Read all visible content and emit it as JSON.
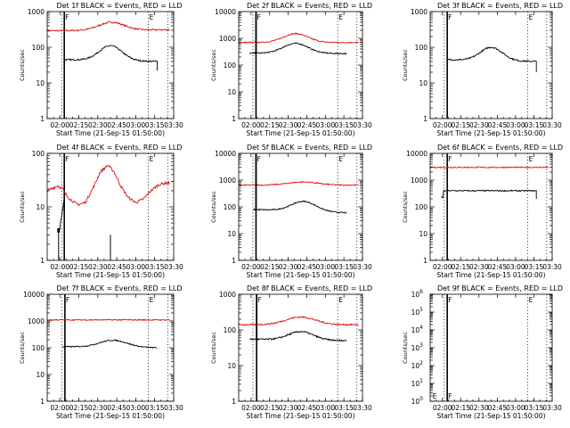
{
  "figure": {
    "x_ticks": [
      "02:00",
      "02:15",
      "02:30",
      "02:45",
      "03:00",
      "03:15",
      "03:30"
    ],
    "x_label": "Start Time (21-Sep-15 01:50:00)",
    "y_label": "Counts/sec",
    "colors": {
      "black_series": "#000000",
      "red_series": "#e01010"
    }
  },
  "chart_data": [
    {
      "type": "line",
      "title": "Det 1f BLACK = Events, RED = LLD",
      "xlabel": "Start Time (21-Sep-15 01:50:00)",
      "ylabel": "Counts/sec",
      "yscale": "log",
      "ylim": [
        1,
        1000
      ],
      "y_tick_labels": [
        "1",
        "10",
        "100",
        "1000"
      ],
      "xlim_minutes": [
        0,
        100
      ],
      "x_tick_labels": [
        "02:00",
        "02:15",
        "02:30",
        "02:45",
        "03:00",
        "03:15",
        "03:30"
      ],
      "markers": {
        "solid_line_at": 13.5,
        "dotted_lines_at": [
          11.5,
          80,
          95.5
        ],
        "F_label_at": 13.5,
        "E_label_at": 80
      },
      "series": [
        {
          "color": "red",
          "start": 0,
          "end": 97,
          "base": 290,
          "bump_center": 51,
          "bump_width": 10,
          "bump_peak": 500,
          "end_value": 310
        },
        {
          "color": "black",
          "start": 13.5,
          "end": 87,
          "base": 45,
          "bump_center": 50,
          "bump_width": 9,
          "bump_peak": 110,
          "end_value": 40,
          "drop_value": 22
        }
      ]
    },
    {
      "type": "line",
      "title": "Det 2f BLACK = Events, RED = LLD",
      "xlabel": "Start Time (21-Sep-15 01:50:00)",
      "ylabel": "Counts/sec",
      "yscale": "log",
      "ylim": [
        1,
        10000
      ],
      "y_tick_labels": [
        "1",
        "10",
        "100",
        "1000",
        "10000"
      ],
      "xlim_minutes": [
        0,
        100
      ],
      "x_tick_labels": [
        "02:00",
        "02:15",
        "02:30",
        "02:45",
        "03:00",
        "03:15",
        "03:30"
      ],
      "markers": {
        "solid_line_at": 14,
        "dotted_lines_at": [
          11.5,
          80,
          95.5
        ],
        "F_label_at": 14,
        "E_label_at": 80
      },
      "series": [
        {
          "color": "red",
          "start": 0,
          "end": 97,
          "base": 700,
          "bump_center": 46,
          "bump_width": 10,
          "bump_peak": 1500,
          "end_value": 700
        },
        {
          "color": "black",
          "start": 9,
          "end": 87,
          "base": 280,
          "bump_center": 46,
          "bump_width": 10,
          "bump_peak": 650,
          "end_value": 270,
          "spike_at": 14,
          "spike_value": 10000
        }
      ]
    },
    {
      "type": "line",
      "title": "Det 3f BLACK = Events, RED = LLD",
      "xlabel": "Start Time (21-Sep-15 01:50:00)",
      "ylabel": "Counts/sec",
      "yscale": "log",
      "ylim": [
        1,
        1000
      ],
      "y_tick_labels": [
        "1",
        "10",
        "100",
        "1000"
      ],
      "xlim_minutes": [
        0,
        100
      ],
      "x_tick_labels": [
        "02:00",
        "02:15",
        "02:30",
        "02:45",
        "03:00",
        "03:15",
        "03:30"
      ],
      "markers": {
        "solid_line_at": 14,
        "dotted_lines_at": [
          11.5,
          80,
          95.5
        ],
        "F_label_at": 14,
        "E_label_at": 80
      },
      "series": [
        {
          "color": "black",
          "start": 14,
          "end": 87,
          "base": 45,
          "bump_center": 50,
          "bump_width": 9,
          "bump_peak": 100,
          "end_value": 40,
          "drop_value": 20
        }
      ]
    },
    {
      "type": "line",
      "title": "Det 4f BLACK = Events, RED = LLD",
      "xlabel": "Start Time (21-Sep-15 01:50:00)",
      "ylabel": "Counts/sec",
      "yscale": "log",
      "ylim": [
        1,
        100
      ],
      "y_tick_labels": [
        "1",
        "10",
        "100"
      ],
      "xlim_minutes": [
        0,
        100
      ],
      "x_tick_labels": [
        "02:00",
        "02:15",
        "02:30",
        "02:45",
        "03:00",
        "03:15",
        "03:30"
      ],
      "markers": {
        "solid_line_at": 13.5,
        "dotted_lines_at": [
          11.5,
          80,
          95.5
        ],
        "F_label_at": 13.5,
        "E_label_at": 80
      },
      "series": [
        {
          "color": "red",
          "start": 0,
          "end": 97,
          "profile": [
            [
              0,
              20
            ],
            [
              4,
              22
            ],
            [
              8,
              25
            ],
            [
              12,
              22
            ],
            [
              14,
              18
            ],
            [
              18,
              14
            ],
            [
              24,
              11
            ],
            [
              30,
              12
            ],
            [
              36,
              22
            ],
            [
              42,
              45
            ],
            [
              48,
              60
            ],
            [
              53,
              45
            ],
            [
              58,
              25
            ],
            [
              64,
              15
            ],
            [
              70,
              12
            ],
            [
              76,
              14
            ],
            [
              82,
              20
            ],
            [
              88,
              26
            ],
            [
              94,
              28
            ],
            [
              97,
              28
            ]
          ]
        },
        {
          "color": "black",
          "start": 8,
          "end": 13.5,
          "profile": [
            [
              8,
              3.5
            ],
            [
              9,
              3.5
            ],
            [
              10,
              4
            ],
            [
              11,
              6
            ],
            [
              12,
              8
            ],
            [
              13,
              12
            ],
            [
              13.5,
              14
            ]
          ]
        }
      ],
      "spikes": [
        {
          "x": 50,
          "value": 3
        },
        {
          "x": 9,
          "value": 3.5
        }
      ]
    },
    {
      "type": "line",
      "title": "Det 5f BLACK = Events, RED = LLD",
      "xlabel": "Start Time (21-Sep-15 01:50:00)",
      "ylabel": "Counts/sec",
      "yscale": "log",
      "ylim": [
        1,
        10000
      ],
      "y_tick_labels": [
        "1",
        "10",
        "100",
        "1000",
        "10000"
      ],
      "xlim_minutes": [
        0,
        100
      ],
      "x_tick_labels": [
        "02:00",
        "02:15",
        "02:30",
        "02:45",
        "03:00",
        "03:15",
        "03:30"
      ],
      "markers": {
        "solid_line_at": 14,
        "dotted_lines_at": [
          11.5,
          80,
          95.5
        ],
        "F_label_at": 14,
        "E_label_at": 80
      },
      "series": [
        {
          "color": "red",
          "start": 0,
          "end": 97,
          "base": 650,
          "bump_center": 52,
          "bump_width": 12,
          "bump_peak": 850,
          "end_value": 650
        },
        {
          "color": "black",
          "start": 12,
          "end": 87,
          "base": 80,
          "bump_center": 52,
          "bump_width": 10,
          "bump_peak": 160,
          "end_value": 60,
          "spike_at": 14,
          "spike_value": 10000
        }
      ]
    },
    {
      "type": "line",
      "title": "Det 6f BLACK = Events, RED = LLD",
      "xlabel": "Start Time (21-Sep-15 01:50:00)",
      "ylabel": "Counts/sec",
      "yscale": "log",
      "ylim": [
        1,
        10000
      ],
      "y_tick_labels": [
        "1",
        "10",
        "100",
        "1000",
        "10000"
      ],
      "xlim_minutes": [
        0,
        100
      ],
      "x_tick_labels": [
        "02:00",
        "02:15",
        "02:30",
        "02:45",
        "03:00",
        "03:15",
        "03:30"
      ],
      "markers": {
        "solid_line_at": 14,
        "dotted_lines_at": [
          11.5,
          80,
          95.5
        ],
        "F_label_at": 14,
        "E_label_at": 80
      },
      "series": [
        {
          "color": "red",
          "start": 0,
          "end": 97,
          "base": 3000,
          "end_value": 3000
        },
        {
          "color": "black",
          "start": 9,
          "end": 87,
          "base": 400,
          "end_value": 400,
          "start_value": 230,
          "drop_value": 200
        }
      ]
    },
    {
      "type": "line",
      "title": "Det 7f BLACK = Events, RED = LLD",
      "xlabel": "Start Time (21-Sep-15 01:50:00)",
      "ylabel": "Counts/sec",
      "yscale": "log",
      "ylim": [
        1,
        10000
      ],
      "y_tick_labels": [
        "1",
        "10",
        "100",
        "1000",
        "10000"
      ],
      "xlim_minutes": [
        0,
        100
      ],
      "x_tick_labels": [
        "02:00",
        "02:15",
        "02:30",
        "02:45",
        "03:00",
        "03:15",
        "03:30"
      ],
      "markers": {
        "solid_line_at": 14,
        "dotted_lines_at": [
          11.5,
          80,
          95.5
        ],
        "F_label_at": 14,
        "E_label_at": 80
      },
      "series": [
        {
          "color": "red",
          "start": 0,
          "end": 97,
          "base": 1100,
          "end_value": 1100
        },
        {
          "color": "black",
          "start": 12,
          "end": 87,
          "base": 110,
          "bump_center": 52,
          "bump_width": 11,
          "bump_peak": 190,
          "end_value": 100
        }
      ]
    },
    {
      "type": "line",
      "title": "Det 8f BLACK = Events, RED = LLD",
      "xlabel": "Start Time (21-Sep-15 01:50:00)",
      "ylabel": "Counts/sec",
      "yscale": "log",
      "ylim": [
        1,
        1000
      ],
      "y_tick_labels": [
        "1",
        "10",
        "100",
        "1000"
      ],
      "xlim_minutes": [
        0,
        100
      ],
      "x_tick_labels": [
        "02:00",
        "02:15",
        "02:30",
        "02:45",
        "03:00",
        "03:15",
        "03:30"
      ],
      "markers": {
        "solid_line_at": 14.5,
        "dotted_lines_at": [
          11.5,
          80,
          95.5
        ],
        "F_label_at": 14.5,
        "E_label_at": 80
      },
      "series": [
        {
          "color": "red",
          "start": 0,
          "end": 97,
          "base": 140,
          "bump_center": 50,
          "bump_width": 12,
          "bump_peak": 230,
          "end_value": 140
        },
        {
          "color": "black",
          "start": 9,
          "end": 87,
          "base": 55,
          "bump_center": 50,
          "bump_width": 10,
          "bump_peak": 90,
          "end_value": 50,
          "spike_at": 14.5,
          "spike_value": 1000
        }
      ]
    },
    {
      "type": "line",
      "title": "Det 9f BLACK = Events, RED = LLD",
      "xlabel": "Start Time (21-Sep-15 01:50:00)",
      "ylabel": "Counts/sec",
      "yscale": "log",
      "ylim": [
        1,
        1000000
      ],
      "y_tick_labels": [
        "10^0",
        "10^1",
        "10^2",
        "10^3",
        "10^4",
        "10^5",
        "10^6"
      ],
      "xlim_minutes": [
        0,
        100
      ],
      "x_tick_labels": [
        "02:00",
        "02:15",
        "02:30",
        "02:45",
        "03:00",
        "03:15",
        "03:30"
      ],
      "markers": {
        "solid_line_at": 14,
        "dotted_lines_at": [
          11.5,
          80,
          95.5
        ],
        "F_label_at": 14,
        "E_label_at": 80,
        "extra_E_at": 2
      },
      "series": []
    }
  ]
}
